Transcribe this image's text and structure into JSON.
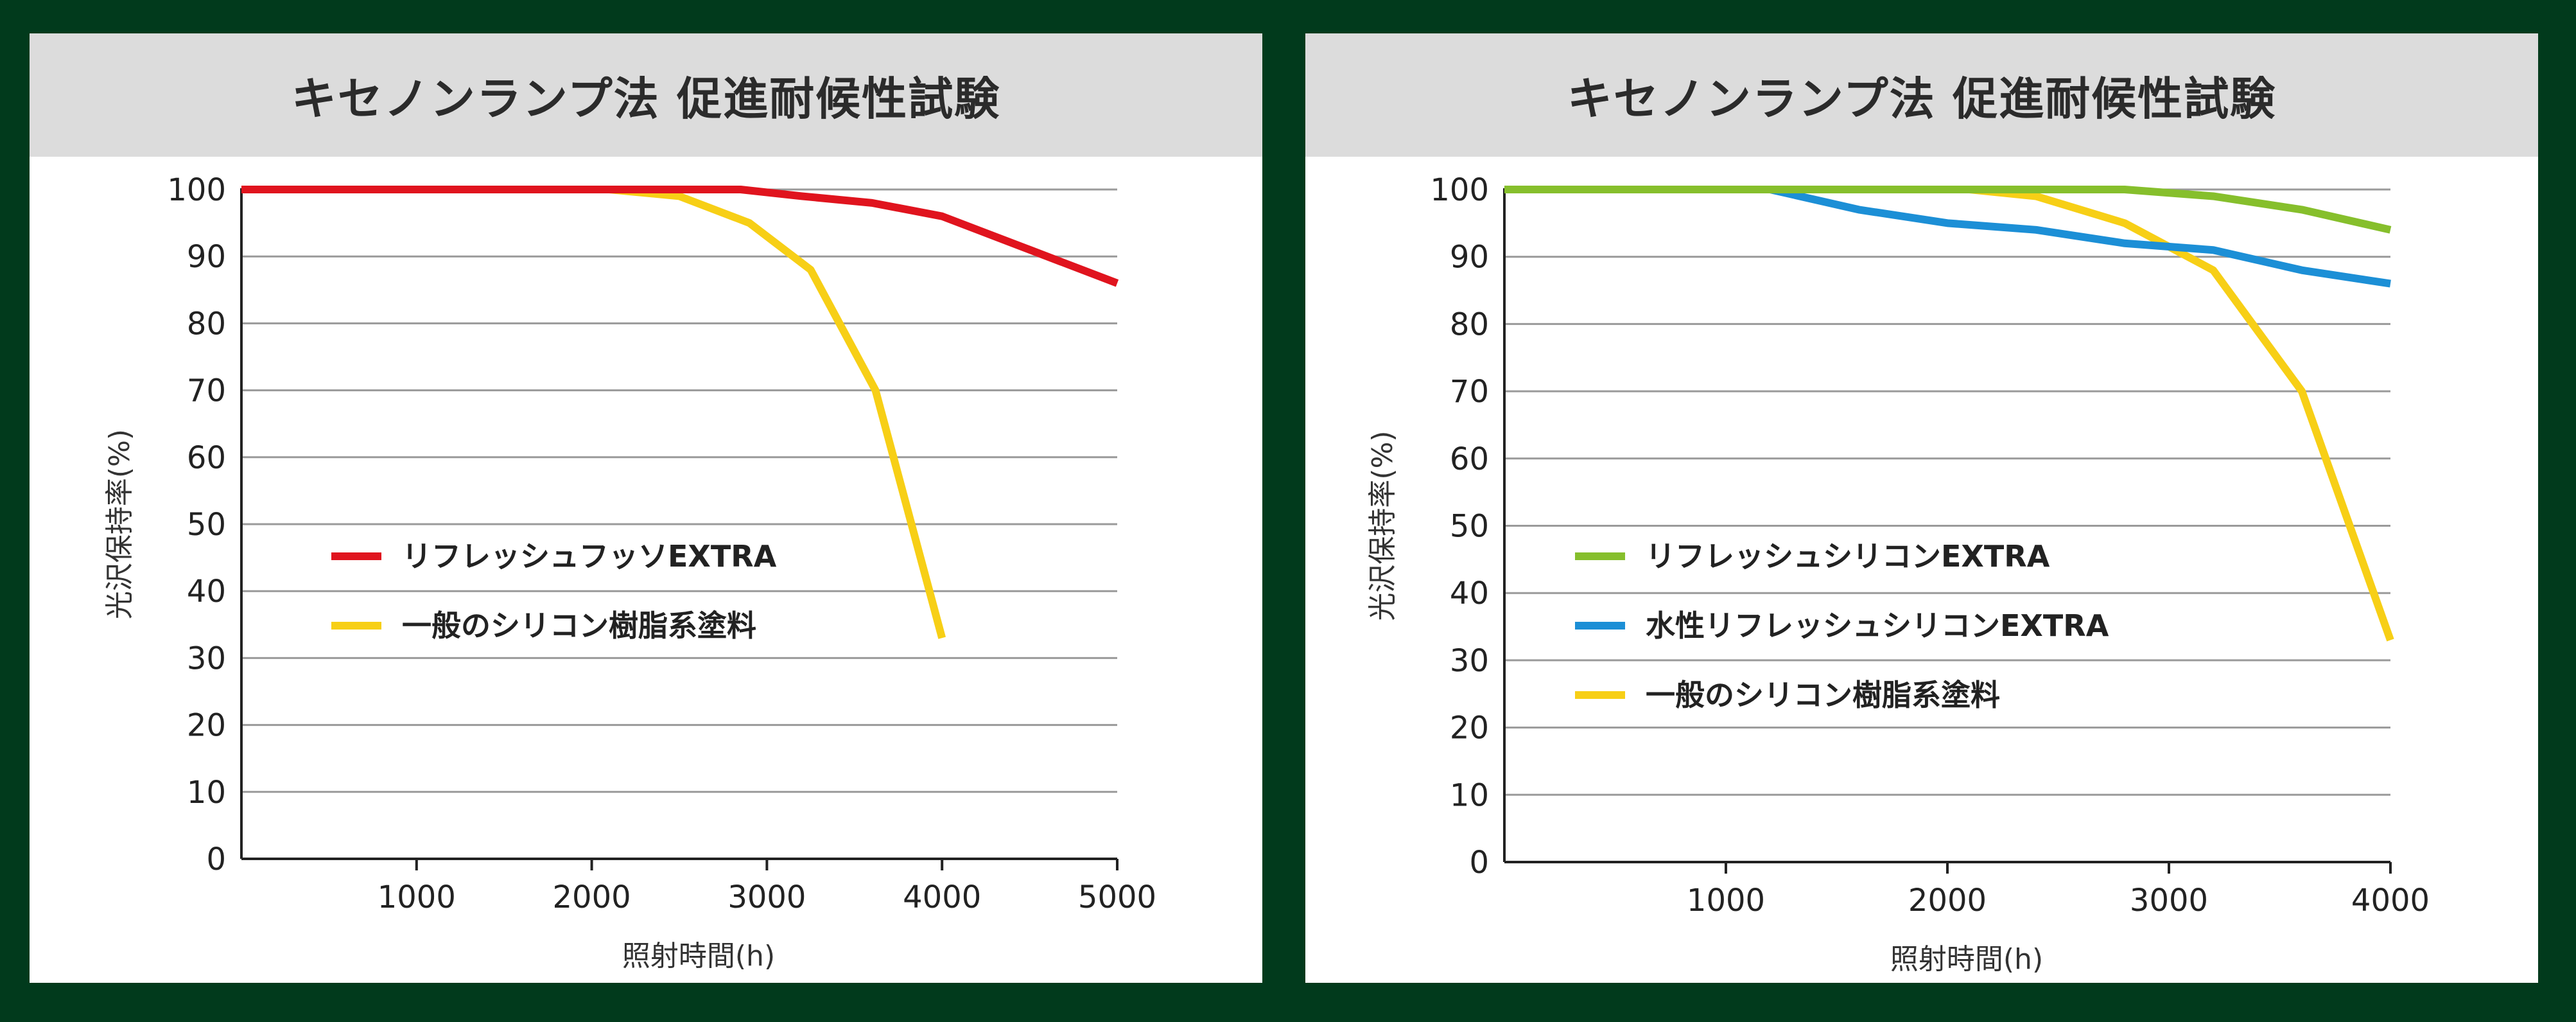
{
  "chart_data": [
    {
      "type": "line",
      "title": "キセノンランプ法 促進耐候性試験",
      "xlabel": "照射時間(h)",
      "ylabel": "光沢保持率(%)",
      "xlim": [
        0,
        5000
      ],
      "ylim": [
        0,
        100
      ],
      "xticks": [
        "1000",
        "2000",
        "3000",
        "4000",
        "5000"
      ],
      "yticks": [
        "0",
        "10",
        "20",
        "30",
        "40",
        "50",
        "60",
        "70",
        "80",
        "90",
        "100"
      ],
      "grid": "horizontal",
      "legend_position": "middle-left",
      "series": [
        {
          "name": "リフレッシュフッソEXTRA",
          "color": "#e0141e",
          "points": [
            [
              0,
              100
            ],
            [
              2850,
              100
            ],
            [
              3200,
              99
            ],
            [
              3600,
              98
            ],
            [
              4000,
              96
            ],
            [
              4500,
              91
            ],
            [
              5000,
              86
            ]
          ]
        },
        {
          "name": "一般のシリコン樹脂系塗料",
          "color": "#f7cf16",
          "points": [
            [
              0,
              100
            ],
            [
              2100,
              100
            ],
            [
              2500,
              99
            ],
            [
              2900,
              95
            ],
            [
              3250,
              88
            ],
            [
              3620,
              70
            ],
            [
              4000,
              33
            ]
          ]
        }
      ]
    },
    {
      "type": "line",
      "title": "キセノンランプ法 促進耐候性試験",
      "xlabel": "照射時間(h)",
      "ylabel": "光沢保持率(%)",
      "xlim": [
        0,
        4000
      ],
      "ylim": [
        0,
        100
      ],
      "xticks": [
        "1000",
        "2000",
        "3000",
        "4000"
      ],
      "yticks": [
        "0",
        "10",
        "20",
        "30",
        "40",
        "50",
        "60",
        "70",
        "80",
        "90",
        "100"
      ],
      "grid": "horizontal",
      "legend_position": "middle-left",
      "series": [
        {
          "name": "リフレッシュシリコンEXTRA",
          "color": "#86bf2c",
          "points": [
            [
              0,
              100
            ],
            [
              2800,
              100
            ],
            [
              3200,
              99
            ],
            [
              3600,
              97
            ],
            [
              4000,
              94
            ]
          ]
        },
        {
          "name": "水性リフレッシュシリコンEXTRA",
          "color": "#1c8fd6",
          "points": [
            [
              0,
              100
            ],
            [
              1200,
              100
            ],
            [
              1600,
              97
            ],
            [
              2000,
              95
            ],
            [
              2400,
              94
            ],
            [
              2800,
              92
            ],
            [
              3200,
              91
            ],
            [
              3600,
              88
            ],
            [
              4000,
              86
            ]
          ]
        },
        {
          "name": "一般のシリコン樹脂系塗料",
          "color": "#f7cf16",
          "points": [
            [
              0,
              100
            ],
            [
              2100,
              100
            ],
            [
              2400,
              99
            ],
            [
              2800,
              95
            ],
            [
              3200,
              88
            ],
            [
              3600,
              70
            ],
            [
              4000,
              33
            ]
          ]
        }
      ]
    }
  ]
}
